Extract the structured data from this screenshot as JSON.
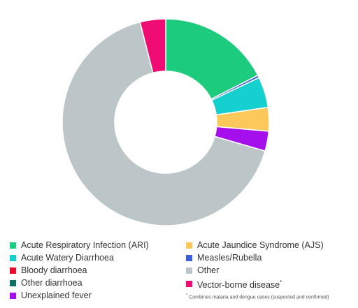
{
  "chart_data": {
    "type": "pie",
    "donut": true,
    "categories": [
      "Acute Respiratory Infection (ARI)",
      "Measles/Rubella",
      "Acute Watery Diarrhoea",
      "Acute Jaundice Syndrome (AJS)",
      "Unexplained fever",
      "Other",
      "Vector-borne disease"
    ],
    "values": [
      17.5,
      0.4,
      4.8,
      3.7,
      3.1,
      66.5,
      4.0
    ],
    "colors": [
      "#1DCB7F",
      "#3A5FD6",
      "#16CFCF",
      "#FCC85C",
      "#A40FEB",
      "#BCC6C8",
      "#EF0D74"
    ],
    "legend": {
      "placement": "bottom",
      "items": [
        {
          "label": "Acute Respiratory Infection (ARI)",
          "color": "#1DCB7F"
        },
        {
          "label": "Acute Jaundice Syndrome (AJS)",
          "color": "#FCC85C"
        },
        {
          "label": "Acute Watery Diarrhoea",
          "color": "#16CFCF"
        },
        {
          "label": "Measles/Rubella",
          "color": "#3A5FD6"
        },
        {
          "label": "Bloody diarrhoea",
          "color": "#E8092E"
        },
        {
          "label": "Other",
          "color": "#BCC6C8"
        },
        {
          "label": "Other diarrhoea",
          "color": "#0C6F66"
        },
        {
          "label": "Vector-borne disease",
          "color": "#EF0D74",
          "marker": "*"
        },
        {
          "label": "Unexplained fever",
          "color": "#A40FEB"
        }
      ]
    },
    "footnote": {
      "marker": "*",
      "text": "Combines malaria and dengue cases (suspected and confirmed)"
    }
  }
}
